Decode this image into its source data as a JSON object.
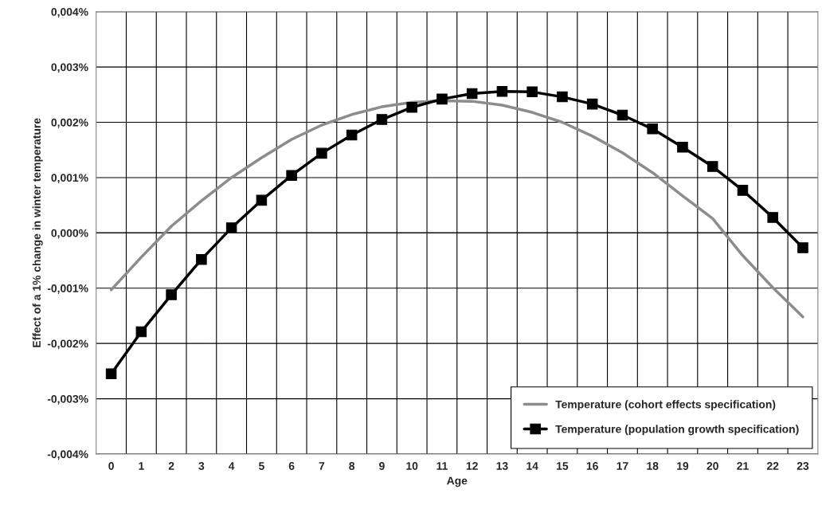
{
  "chart_data": {
    "type": "line",
    "xlabel": "Age",
    "ylabel": "Effect of a 1% change in winter temperature",
    "categories": [
      "0",
      "1",
      "2",
      "3",
      "4",
      "5",
      "6",
      "7",
      "8",
      "9",
      "10",
      "11",
      "12",
      "13",
      "14",
      "15",
      "16",
      "17",
      "18",
      "19",
      "20",
      "21",
      "22",
      "23"
    ],
    "series": [
      {
        "name": "Temperature (cohort effects specification)",
        "color": "#8c8c8c",
        "marker": "none",
        "values": [
          -0.00103,
          -0.00044,
          0.00012,
          0.00058,
          0.001,
          0.00136,
          0.00169,
          0.00195,
          0.00214,
          0.00228,
          0.00236,
          0.00239,
          0.00238,
          0.00231,
          0.00218,
          0.002,
          0.00175,
          0.00145,
          0.00109,
          0.00067,
          0.00026,
          -0.00041,
          -0.00099,
          -0.00152
        ]
      },
      {
        "name": "Temperature (population growth specification)",
        "color": "#000000",
        "marker": "square",
        "values": [
          -0.00255,
          -0.00179,
          -0.00112,
          -0.00048,
          9e-05,
          0.00059,
          0.00104,
          0.00144,
          0.00177,
          0.00205,
          0.00227,
          0.00242,
          0.00252,
          0.00256,
          0.00255,
          0.00246,
          0.00233,
          0.00213,
          0.00188,
          0.00155,
          0.0012,
          0.00077,
          0.00028,
          -0.00027
        ]
      }
    ],
    "ylim": [
      -0.004,
      0.004
    ],
    "yticks": [
      {
        "value": -0.004,
        "label": "-0,004%"
      },
      {
        "value": -0.003,
        "label": "-0,003%"
      },
      {
        "value": -0.002,
        "label": "-0,002%"
      },
      {
        "value": -0.001,
        "label": "-0,001%"
      },
      {
        "value": 0,
        "label": "0,000%"
      },
      {
        "value": 0.001,
        "label": "0,001%"
      },
      {
        "value": 0.002,
        "label": "0,002%"
      },
      {
        "value": 0.003,
        "label": "0,003%"
      },
      {
        "value": 0.004,
        "label": "0,004%"
      }
    ],
    "grid": true,
    "legend": "bottom right",
    "line_style": "solid"
  }
}
